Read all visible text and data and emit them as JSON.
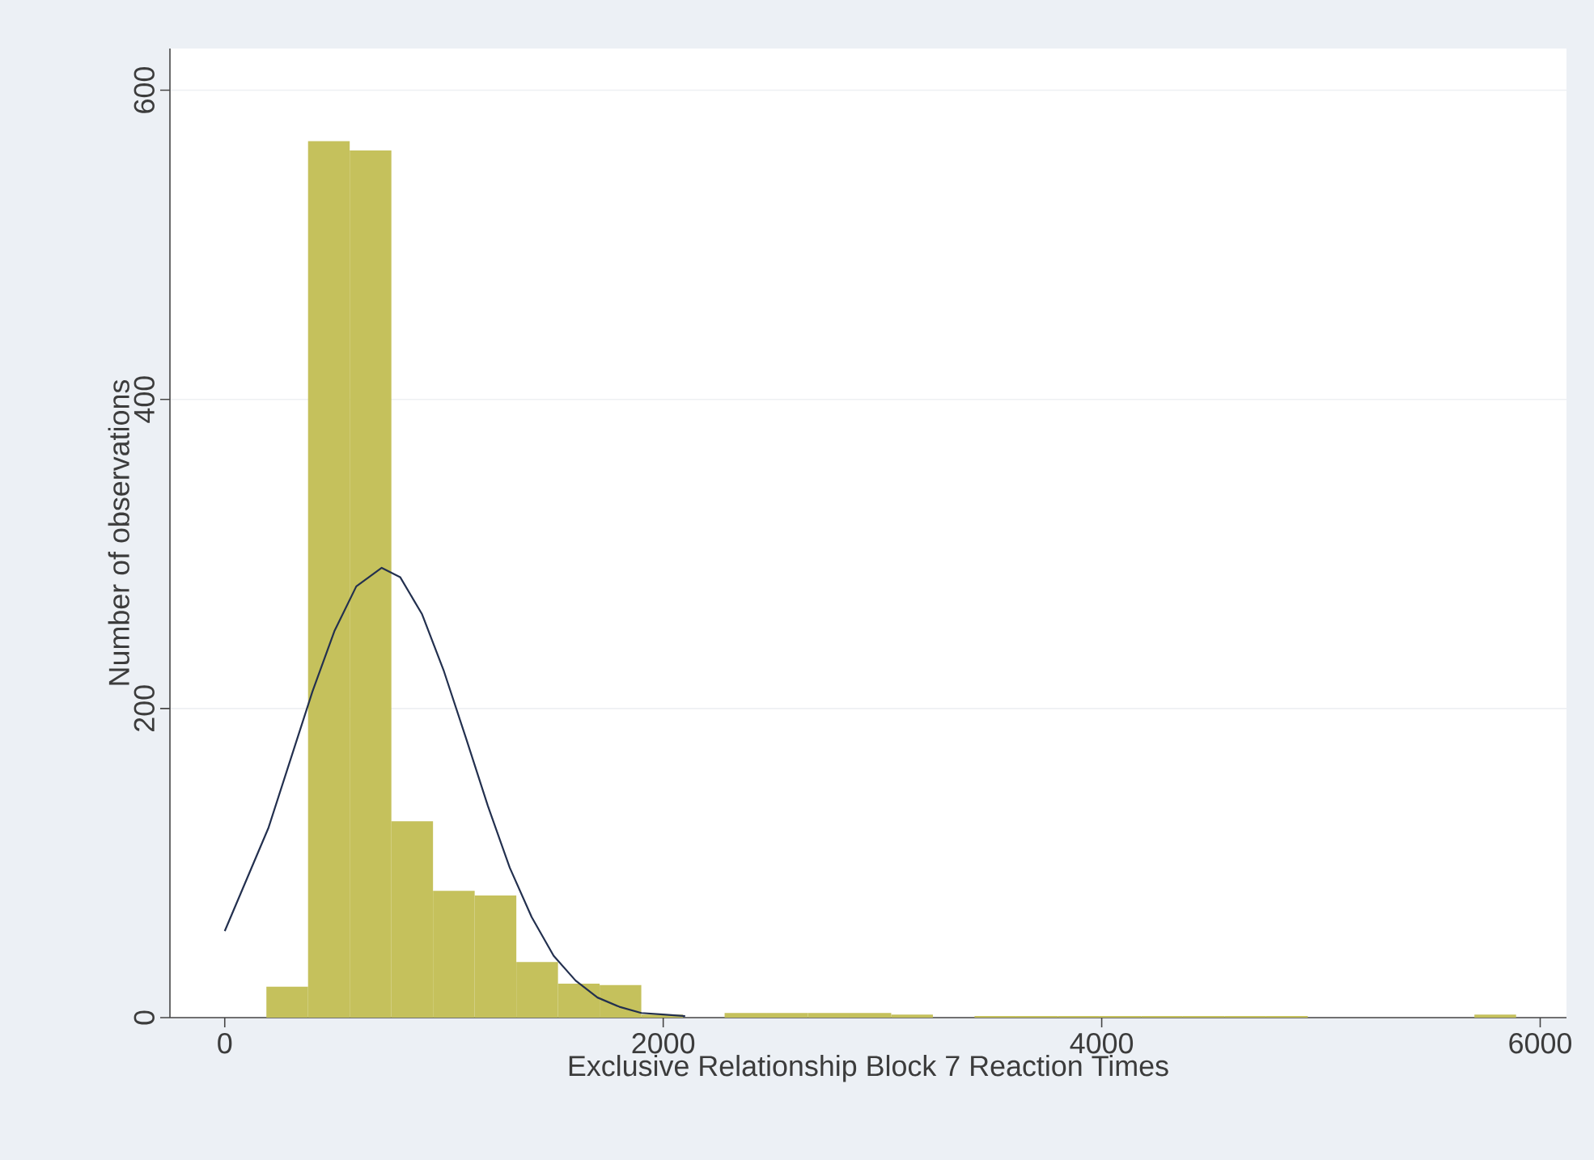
{
  "chart_data": {
    "type": "histogram",
    "xlabel": "Exclusive Relationship Block 7 Reaction Times",
    "ylabel": "Number of observations",
    "bins": [
      190,
      380,
      570,
      760,
      950,
      1140,
      1330,
      1520,
      1710,
      1900,
      2090,
      2280,
      2470,
      2660,
      2850,
      3040,
      3230,
      3420,
      3610,
      3800,
      3990,
      4180,
      4370,
      4560,
      4750,
      4940,
      5130,
      5320,
      5510,
      5700,
      5890
    ],
    "values": [
      20,
      567,
      561,
      127,
      82,
      79,
      36,
      22,
      21,
      2,
      0,
      3,
      3,
      3,
      3,
      2,
      0,
      1,
      1,
      1,
      1,
      1,
      1,
      1,
      1,
      0,
      0,
      0,
      0,
      2
    ],
    "color": "#c5c15c",
    "series": [
      {
        "type": "line",
        "color": "#23304f",
        "x": [
          0,
          200,
          300,
          400,
          500,
          600,
          716,
          800,
          900,
          1000,
          1100,
          1200,
          1300,
          1400,
          1500,
          1600,
          1700,
          1800,
          1900,
          2000,
          2100
        ],
        "values": [
          56,
          123,
          167,
          211,
          250,
          279,
          291,
          285,
          261,
          224,
          181,
          137,
          97,
          65,
          40,
          24,
          13,
          7,
          3,
          2,
          1
        ]
      }
    ],
    "xlim": [
      -250,
      6120
    ],
    "ylim": [
      0,
      627
    ],
    "xticks": [
      0,
      2000,
      4000,
      6000
    ],
    "yticks": [
      0,
      200,
      400,
      600
    ],
    "grid": "y"
  }
}
